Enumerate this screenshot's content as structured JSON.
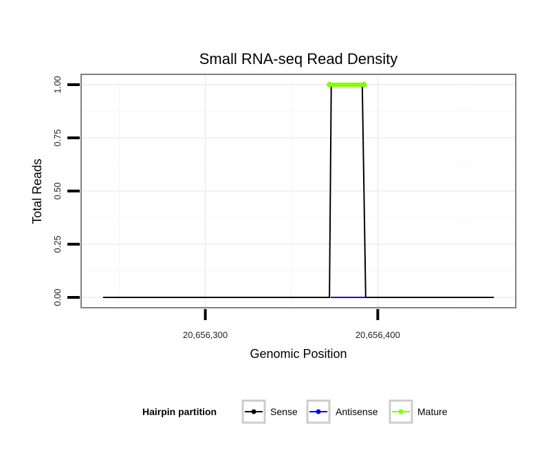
{
  "chart_data": {
    "type": "line",
    "title": "Small RNA-seq Read Density",
    "xlabel": "Genomic Position",
    "ylabel": "Total Reads",
    "xlim": [
      20656228,
      20656480
    ],
    "ylim": [
      0,
      1.0
    ],
    "x_ticks": [
      {
        "value": 20656300,
        "label": "20,656,300"
      },
      {
        "value": 20656400,
        "label": "20,656,400"
      }
    ],
    "y_ticks": [
      {
        "value": 0.0,
        "label": "0.00"
      },
      {
        "value": 0.25,
        "label": "0.25"
      },
      {
        "value": 0.5,
        "label": "0.50"
      },
      {
        "value": 0.75,
        "label": "0.75"
      },
      {
        "value": 1.0,
        "label": "1.00"
      }
    ],
    "grid": true,
    "series": [
      {
        "name": "Sense",
        "color": "#000000",
        "x": [
          20656241,
          20656372,
          20656373,
          20656391,
          20656393,
          20656467
        ],
        "y": [
          0,
          0,
          1,
          1,
          0,
          0
        ]
      },
      {
        "name": "Antisense",
        "color": "#0000ff",
        "x": [
          20656373,
          20656393
        ],
        "y": [
          0,
          0
        ]
      },
      {
        "name": "Mature",
        "color": "#7fff00",
        "x": [
          20656372,
          20656392
        ],
        "y": [
          1,
          1
        ]
      }
    ],
    "legend": {
      "title": "Hairpin partition",
      "position": "bottom",
      "entries": [
        {
          "label": "Sense",
          "color": "#000000"
        },
        {
          "label": "Antisense",
          "color": "#0000ff"
        },
        {
          "label": "Mature",
          "color": "#7fff00"
        }
      ]
    }
  }
}
